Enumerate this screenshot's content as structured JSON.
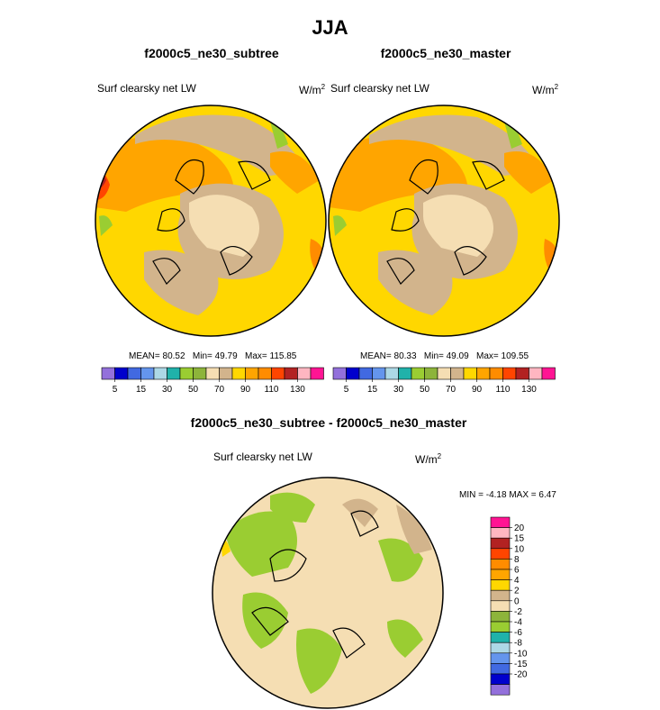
{
  "page": {
    "title": "JJA"
  },
  "panels": [
    {
      "id": "subtree",
      "title": "f2000c5_ne30_subtree",
      "left_label": "Surf clearsky net LW",
      "units_base": "W/m",
      "units_exp": "2",
      "stats": {
        "mean_label": "MEAN=",
        "mean": "80.52",
        "min_label": "Min=",
        "min": "49.79",
        "max_label": "Max=",
        "max": "115.85"
      }
    },
    {
      "id": "master",
      "title": "f2000c5_ne30_master",
      "left_label": "Surf clearsky net LW",
      "units_base": "W/m",
      "units_exp": "2",
      "stats": {
        "mean_label": "MEAN=",
        "mean": "80.33",
        "min_label": "Min=",
        "min": "49.09",
        "max_label": "Max=",
        "max": "109.55"
      }
    },
    {
      "id": "diff",
      "title": "f2000c5_ne30_subtree - f2000c5_ne30_master",
      "left_label": "Surf clearsky net LW",
      "units_base": "W/m",
      "units_exp": "2",
      "stats": {
        "min_label": "MIN =",
        "min": "-4.18",
        "max_label": "MAX =",
        "max": "6.47"
      }
    }
  ],
  "colorbar_top": {
    "colors": [
      "#9370db",
      "#0000cd",
      "#4169e1",
      "#6495ed",
      "#add8e6",
      "#20b2aa",
      "#9acd32",
      "#8db43a",
      "#f5deb3",
      "#d2b48c",
      "#ffd700",
      "#ffa500",
      "#ff8c00",
      "#ff4500",
      "#b22222",
      "#ffb6c1",
      "#ff1493"
    ],
    "labels": [
      "5",
      "15",
      "30",
      "50",
      "70",
      "90",
      "110",
      "130"
    ]
  },
  "colorbar_diff": {
    "colors": [
      "#ff1493",
      "#ffb6c1",
      "#b22222",
      "#ff4500",
      "#ff8c00",
      "#ffa500",
      "#ffd700",
      "#d2b48c",
      "#f5deb3",
      "#8db43a",
      "#9acd32",
      "#20b2aa",
      "#add8e6",
      "#6495ed",
      "#4169e1",
      "#0000cd",
      "#9370db"
    ],
    "labels": [
      "20",
      "15",
      "10",
      "8",
      "6",
      "4",
      "2",
      "0",
      "-2",
      "-4",
      "-6",
      "-8",
      "-10",
      "-15",
      "-20"
    ]
  },
  "chart_data": [
    {
      "type": "heatmap",
      "title": "f2000c5_ne30_subtree",
      "variable": "Surf clearsky net LW",
      "units": "W/m2",
      "projection": "polar stereographic (north pole)",
      "season": "JJA",
      "contour_levels": [
        5,
        10,
        15,
        20,
        30,
        40,
        50,
        60,
        70,
        80,
        90,
        100,
        110,
        120,
        130
      ],
      "mean": 80.52,
      "min": 49.79,
      "max": 115.85
    },
    {
      "type": "heatmap",
      "title": "f2000c5_ne30_master",
      "variable": "Surf clearsky net LW",
      "units": "W/m2",
      "projection": "polar stereographic (north pole)",
      "season": "JJA",
      "contour_levels": [
        5,
        10,
        15,
        20,
        30,
        40,
        50,
        60,
        70,
        80,
        90,
        100,
        110,
        120,
        130
      ],
      "mean": 80.33,
      "min": 49.09,
      "max": 109.55
    },
    {
      "type": "heatmap",
      "title": "f2000c5_ne30_subtree - f2000c5_ne30_master",
      "variable": "Surf clearsky net LW",
      "units": "W/m2",
      "projection": "polar stereographic (north pole)",
      "season": "JJA",
      "contour_levels": [
        -20,
        -15,
        -10,
        -8,
        -6,
        -4,
        -2,
        0,
        2,
        4,
        6,
        8,
        10,
        15,
        20
      ],
      "min": -4.18,
      "max": 6.47
    }
  ]
}
